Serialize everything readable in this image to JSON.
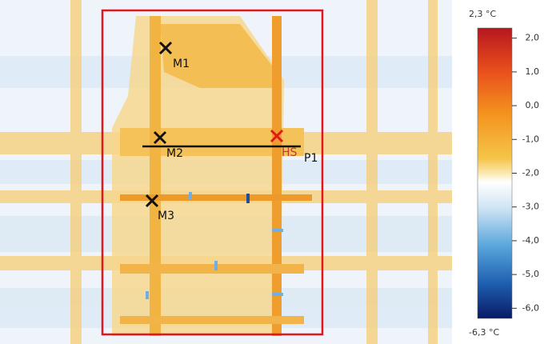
{
  "markers": [
    {
      "label": "M1"
    },
    {
      "label": "M2"
    },
    {
      "label": "M3"
    },
    {
      "label": "HS"
    },
    {
      "label": "P1"
    }
  ],
  "scale": {
    "max": {
      "value": 2.3,
      "label": "2,3 °C"
    },
    "min": {
      "value": -6.3,
      "label": "-6,3 °C"
    },
    "ticks": [
      {
        "value": 2,
        "label": "2,0"
      },
      {
        "value": 1,
        "label": "1,0"
      },
      {
        "value": 0,
        "label": "0,0"
      },
      {
        "value": -1,
        "label": "-1,0"
      },
      {
        "value": -2,
        "label": "-2,0"
      },
      {
        "value": -3,
        "label": "-3,0"
      },
      {
        "value": -4,
        "label": "-4,0"
      },
      {
        "value": -5,
        "label": "-5,0"
      },
      {
        "value": -6,
        "label": "-6,0"
      }
    ]
  }
}
